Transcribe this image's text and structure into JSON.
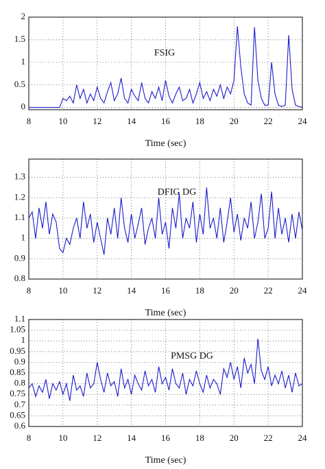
{
  "chart_data": [
    {
      "type": "line",
      "annotation": "FSIG",
      "x_label": "Time (sec)",
      "color": "#1a1acc",
      "grid": true,
      "xlim": [
        8,
        24
      ],
      "xticks": [
        8,
        10,
        12,
        14,
        16,
        18,
        20,
        22,
        24
      ],
      "ylim": [
        -0.05,
        2
      ],
      "yticks": [
        0,
        0.5,
        1,
        1.5,
        2
      ],
      "x": [
        8,
        8.2,
        8.4,
        8.6,
        8.8,
        9,
        9.2,
        9.4,
        9.6,
        9.8,
        10,
        10.2,
        10.4,
        10.6,
        10.8,
        11,
        11.2,
        11.4,
        11.6,
        11.8,
        12,
        12.2,
        12.4,
        12.6,
        12.8,
        13,
        13.2,
        13.4,
        13.6,
        13.8,
        14,
        14.2,
        14.4,
        14.6,
        14.8,
        15,
        15.2,
        15.4,
        15.6,
        15.8,
        16,
        16.2,
        16.4,
        16.6,
        16.8,
        17,
        17.2,
        17.4,
        17.6,
        17.8,
        18,
        18.2,
        18.4,
        18.6,
        18.8,
        19,
        19.2,
        19.4,
        19.6,
        19.8,
        20,
        20.2,
        20.4,
        20.6,
        20.8,
        21,
        21.2,
        21.4,
        21.6,
        21.8,
        22,
        22.2,
        22.4,
        22.6,
        22.8,
        23,
        23.2,
        23.4,
        23.6,
        23.8,
        24
      ],
      "values": [
        0,
        0,
        0,
        0,
        0,
        0,
        0,
        0,
        0,
        0,
        0.2,
        0.15,
        0.25,
        0.1,
        0.5,
        0.2,
        0.4,
        0.1,
        0.3,
        0.15,
        0.45,
        0.2,
        0.1,
        0.35,
        0.55,
        0.15,
        0.3,
        0.65,
        0.2,
        0.1,
        0.4,
        0.25,
        0.15,
        0.55,
        0.2,
        0.1,
        0.35,
        0.2,
        0.45,
        0.15,
        0.6,
        0.25,
        0.1,
        0.3,
        0.45,
        0.15,
        0.2,
        0.4,
        0.1,
        0.3,
        0.55,
        0.2,
        0.35,
        0.15,
        0.4,
        0.25,
        0.5,
        0.2,
        0.45,
        0.3,
        0.6,
        1.8,
        0.9,
        0.3,
        0.1,
        0.05,
        1.78,
        0.6,
        0.2,
        0.05,
        0.05,
        1.0,
        0.3,
        0.05,
        0.02,
        0.05,
        1.6,
        0.4,
        0.05,
        0.02,
        0
      ]
    },
    {
      "type": "line",
      "annotation": "DFIG DG",
      "x_label": "Time (sec)",
      "color": "#1a1acc",
      "grid": true,
      "xlim": [
        8,
        24
      ],
      "xticks": [
        8,
        10,
        12,
        14,
        16,
        18,
        20,
        22,
        24
      ],
      "ylim": [
        0.8,
        1.39
      ],
      "yticks": [
        0.8,
        0.9,
        1,
        1.1,
        1.2,
        1.3
      ],
      "x": [
        8,
        8.2,
        8.4,
        8.6,
        8.8,
        9,
        9.2,
        9.4,
        9.6,
        9.8,
        10,
        10.2,
        10.4,
        10.6,
        10.8,
        11,
        11.2,
        11.4,
        11.6,
        11.8,
        12,
        12.2,
        12.4,
        12.6,
        12.8,
        13,
        13.2,
        13.4,
        13.6,
        13.8,
        14,
        14.2,
        14.4,
        14.6,
        14.8,
        15,
        15.2,
        15.4,
        15.6,
        15.8,
        16,
        16.2,
        16.4,
        16.6,
        16.8,
        17,
        17.2,
        17.4,
        17.6,
        17.8,
        18,
        18.2,
        18.4,
        18.6,
        18.8,
        19,
        19.2,
        19.4,
        19.6,
        19.8,
        20,
        20.2,
        20.4,
        20.6,
        20.8,
        21,
        21.2,
        21.4,
        21.6,
        21.8,
        22,
        22.2,
        22.4,
        22.6,
        22.8,
        23,
        23.2,
        23.4,
        23.6,
        23.8,
        24
      ],
      "values": [
        1.1,
        1.13,
        1.0,
        1.15,
        1.05,
        1.18,
        1.02,
        1.12,
        1.08,
        0.95,
        0.93,
        1.0,
        0.97,
        1.05,
        1.1,
        1.0,
        1.18,
        1.05,
        1.12,
        0.98,
        1.08,
        1.0,
        0.92,
        1.1,
        1.02,
        1.15,
        1.0,
        1.2,
        1.05,
        0.98,
        1.12,
        1.0,
        1.07,
        1.15,
        0.97,
        1.05,
        1.1,
        1.0,
        1.2,
        1.02,
        1.08,
        0.95,
        1.15,
        1.05,
        1.22,
        1.0,
        1.1,
        1.05,
        1.18,
        0.98,
        1.12,
        1.02,
        1.25,
        1.05,
        1.1,
        1.0,
        1.15,
        0.98,
        1.08,
        1.2,
        1.03,
        1.12,
        0.99,
        1.1,
        1.05,
        1.18,
        1.0,
        1.08,
        1.22,
        1.0,
        1.05,
        1.23,
        1.0,
        1.15,
        1.02,
        1.1,
        0.98,
        1.12,
        1.0,
        1.13,
        1.04
      ]
    },
    {
      "type": "line",
      "annotation": "PMSG DG",
      "x_label": "Time (sec)",
      "color": "#1a1acc",
      "grid": true,
      "xlim": [
        8,
        24
      ],
      "xticks": [
        8,
        10,
        12,
        14,
        16,
        18,
        20,
        22,
        24
      ],
      "ylim": [
        0.6,
        1.1
      ],
      "yticks": [
        0.6,
        0.65,
        0.7,
        0.75,
        0.8,
        0.85,
        0.9,
        0.95,
        1,
        1.05,
        1.1
      ],
      "x": [
        8,
        8.2,
        8.4,
        8.6,
        8.8,
        9,
        9.2,
        9.4,
        9.6,
        9.8,
        10,
        10.2,
        10.4,
        10.6,
        10.8,
        11,
        11.2,
        11.4,
        11.6,
        11.8,
        12,
        12.2,
        12.4,
        12.6,
        12.8,
        13,
        13.2,
        13.4,
        13.6,
        13.8,
        14,
        14.2,
        14.4,
        14.6,
        14.8,
        15,
        15.2,
        15.4,
        15.6,
        15.8,
        16,
        16.2,
        16.4,
        16.6,
        16.8,
        17,
        17.2,
        17.4,
        17.6,
        17.8,
        18,
        18.2,
        18.4,
        18.6,
        18.8,
        19,
        19.2,
        19.4,
        19.6,
        19.8,
        20,
        20.2,
        20.4,
        20.6,
        20.8,
        21,
        21.2,
        21.4,
        21.6,
        21.8,
        22,
        22.2,
        22.4,
        22.6,
        22.8,
        23,
        23.2,
        23.4,
        23.6,
        23.8,
        24
      ],
      "values": [
        0.78,
        0.8,
        0.74,
        0.79,
        0.76,
        0.82,
        0.73,
        0.8,
        0.77,
        0.81,
        0.75,
        0.8,
        0.72,
        0.84,
        0.77,
        0.79,
        0.74,
        0.85,
        0.78,
        0.8,
        0.9,
        0.82,
        0.76,
        0.85,
        0.79,
        0.81,
        0.74,
        0.87,
        0.78,
        0.82,
        0.75,
        0.84,
        0.8,
        0.77,
        0.86,
        0.79,
        0.82,
        0.76,
        0.88,
        0.8,
        0.83,
        0.77,
        0.87,
        0.8,
        0.78,
        0.85,
        0.75,
        0.82,
        0.79,
        0.86,
        0.8,
        0.76,
        0.84,
        0.78,
        0.82,
        0.8,
        0.75,
        0.87,
        0.83,
        0.9,
        0.82,
        0.88,
        0.78,
        0.92,
        0.85,
        0.89,
        0.8,
        1.01,
        0.86,
        0.82,
        0.88,
        0.79,
        0.84,
        0.8,
        0.86,
        0.78,
        0.84,
        0.76,
        0.85,
        0.79,
        0.8
      ]
    }
  ]
}
